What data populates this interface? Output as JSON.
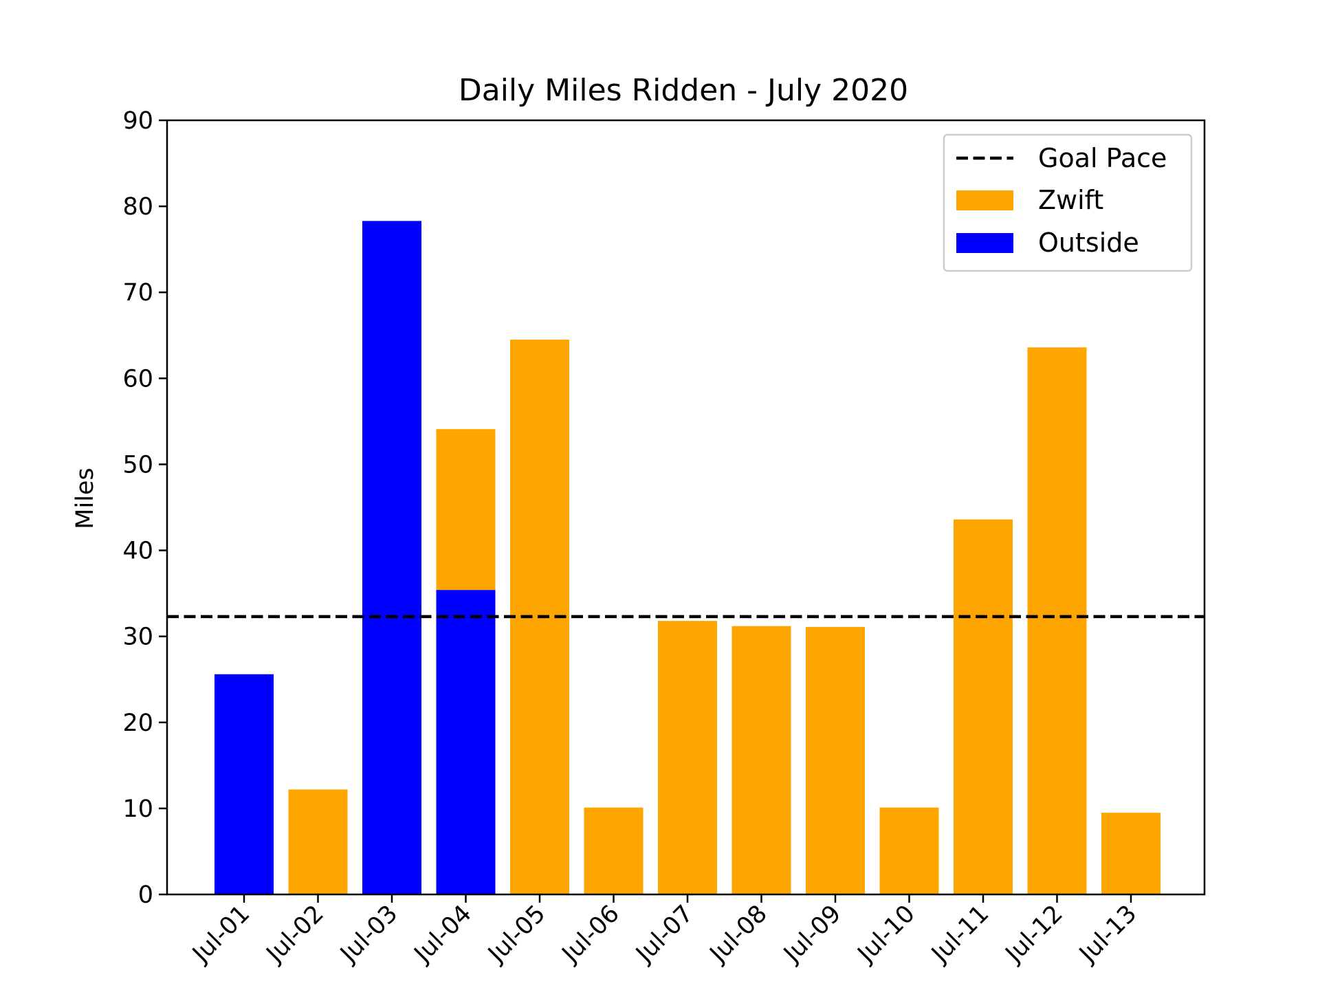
{
  "chart_data": {
    "type": "bar",
    "title": "Daily Miles Ridden - July 2020",
    "xlabel": "",
    "ylabel": "Miles",
    "ylim": [
      0,
      90
    ],
    "yticks": [
      0,
      10,
      20,
      30,
      40,
      50,
      60,
      70,
      80,
      90
    ],
    "categories": [
      "Jul-01",
      "Jul-02",
      "Jul-03",
      "Jul-04",
      "Jul-05",
      "Jul-06",
      "Jul-07",
      "Jul-08",
      "Jul-09",
      "Jul-10",
      "Jul-11",
      "Jul-12",
      "Jul-13"
    ],
    "stacked": true,
    "series": [
      {
        "name": "Outside",
        "color": "#0000ff",
        "values": [
          25.6,
          0,
          78.3,
          35.4,
          0,
          0,
          0,
          0,
          0,
          0,
          0,
          0,
          0
        ]
      },
      {
        "name": "Zwift",
        "color": "#ffa500",
        "values": [
          0,
          12.2,
          0,
          18.7,
          64.5,
          10.1,
          31.8,
          31.2,
          31.1,
          10.1,
          43.6,
          63.6,
          9.5
        ]
      }
    ],
    "reference_line": {
      "name": "Goal Pace",
      "value": 32.3,
      "style": "dashed",
      "color": "#000000"
    },
    "legend": {
      "position": "top-right",
      "entries": [
        {
          "label": "Goal Pace",
          "kind": "dashed-line",
          "color": "#000000"
        },
        {
          "label": "Zwift",
          "kind": "patch",
          "color": "#ffa500"
        },
        {
          "label": "Outside",
          "kind": "patch",
          "color": "#0000ff"
        }
      ]
    },
    "grid": false
  }
}
